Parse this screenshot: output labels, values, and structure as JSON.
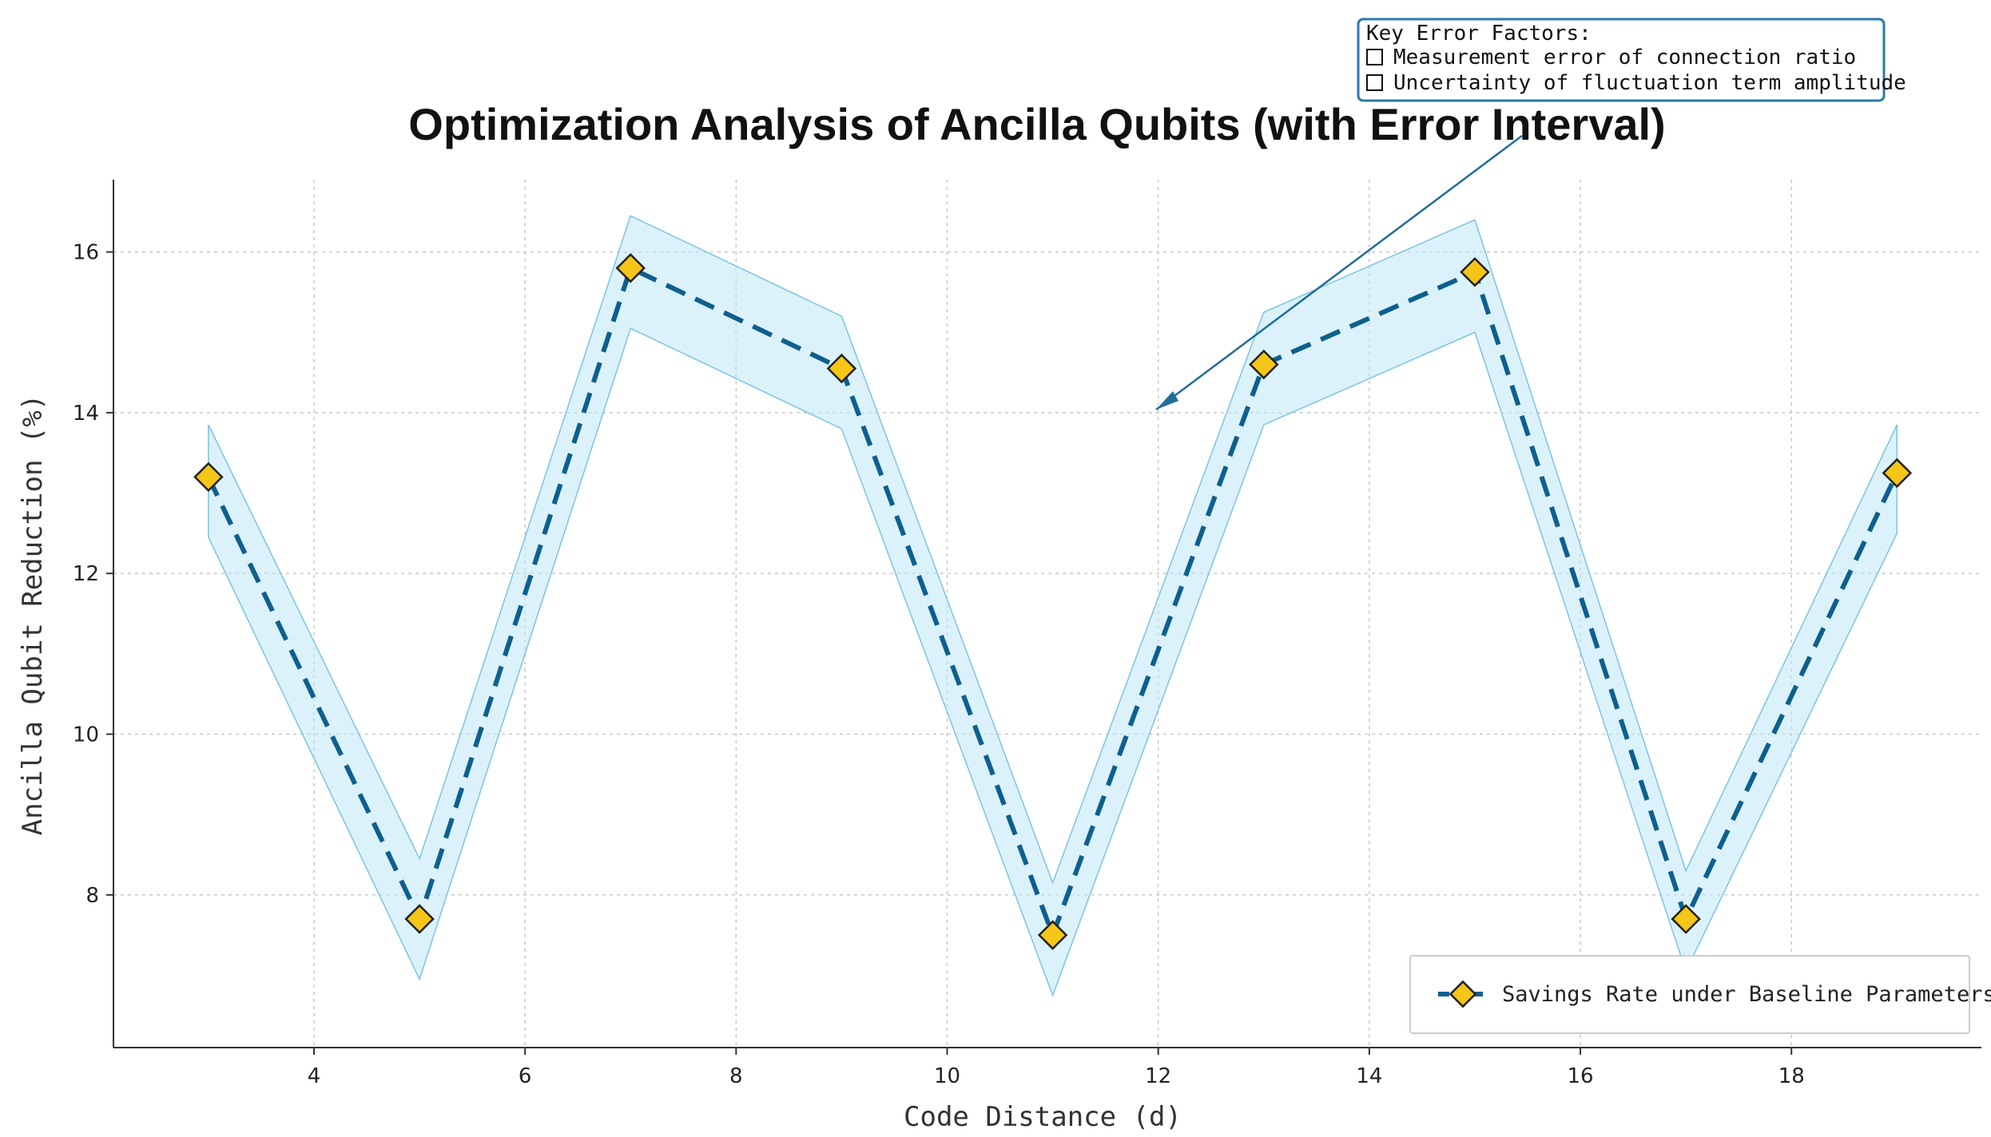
{
  "chart_data": {
    "type": "line",
    "title": "Optimization Analysis of Ancilla Qubits (with Error Interval)",
    "xlabel": "Code Distance (d)",
    "ylabel": "Ancilla Qubit Reduction (%)",
    "xlim": [
      2.1,
      19.8
    ],
    "ylim": [
      6.1,
      16.9
    ],
    "xticks": [
      4,
      6,
      8,
      10,
      12,
      14,
      16,
      18
    ],
    "yticks": [
      8,
      10,
      12,
      14,
      16
    ],
    "grid": true,
    "legend_position": "bottom-right",
    "series": [
      {
        "name": "Savings Rate under Baseline Parameters",
        "x": [
          3,
          5,
          7,
          9,
          11,
          13,
          15,
          17,
          19
        ],
        "y": [
          13.2,
          7.7,
          15.8,
          14.55,
          7.5,
          14.6,
          15.75,
          7.7,
          13.25
        ],
        "lower": [
          12.45,
          6.95,
          15.05,
          13.8,
          6.75,
          13.85,
          15.0,
          7.05,
          12.5
        ],
        "upper": [
          13.85,
          8.45,
          16.45,
          15.2,
          8.15,
          15.25,
          16.4,
          8.3,
          13.85
        ],
        "line_color": "#0e5f8f",
        "marker_color": "#f5c518",
        "band_color": "#bde8f7"
      }
    ],
    "annotation": {
      "title": "Key Error Factors:",
      "items": [
        "Measurement error of connection ratio",
        "Uncertainty of fluctuation term amplitude"
      ],
      "arrow_target": [
        12,
        14.0
      ],
      "border_color": "#2a7aa8"
    }
  }
}
